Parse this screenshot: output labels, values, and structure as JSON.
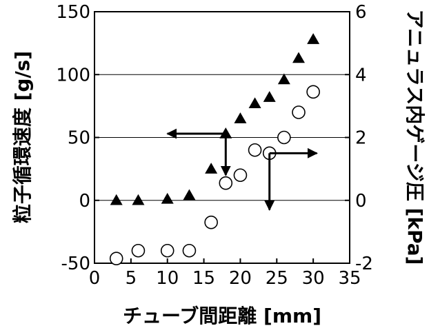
{
  "chart_data": {
    "type": "scatter",
    "xlabel": "チューブ間距離 [mm]",
    "ylabel": "粒子循環速度 [g/s]",
    "y2label": "アニュラス内ゲージ圧 [kPa]",
    "xlim": [
      0,
      35
    ],
    "ylim": [
      -50,
      150
    ],
    "y2lim": [
      -2,
      6
    ],
    "x_ticks": [
      "0",
      "5",
      "10",
      "15",
      "20",
      "25",
      "30",
      "35"
    ],
    "y_ticks": [
      "-50",
      "0",
      "50",
      "100",
      "150"
    ],
    "y2_ticks": [
      "-2",
      "0",
      "2",
      "4",
      "6"
    ],
    "grid": "horizontal",
    "series": [
      {
        "marker": "filled-triangle",
        "axis": "left",
        "color": "#000000",
        "x": [
          3,
          6,
          10,
          13,
          16,
          18,
          20,
          22,
          24,
          26,
          28,
          30
        ],
        "y": [
          0,
          0,
          1,
          4,
          25,
          53,
          65,
          77,
          82,
          96,
          113,
          128
        ]
      },
      {
        "marker": "open-circle",
        "axis": "right",
        "color": "#000000",
        "x": [
          3,
          6,
          10,
          13,
          16,
          18,
          20,
          22,
          24,
          26,
          28,
          30
        ],
        "y": [
          -1.85,
          -1.6,
          -1.6,
          -1.6,
          -0.7,
          0.55,
          0.8,
          1.6,
          1.5,
          2.0,
          2.8,
          3.45
        ]
      }
    ],
    "annotations": [
      {
        "type": "arrow",
        "from": [
          18,
          53
        ],
        "to": [
          10,
          53
        ],
        "axis": "left"
      },
      {
        "type": "arrow",
        "from": [
          18,
          53
        ],
        "to": [
          18,
          20
        ],
        "axis": "left"
      },
      {
        "type": "arrow",
        "from": [
          24,
          1.5
        ],
        "to": [
          30.5,
          1.5
        ],
        "axis": "right"
      },
      {
        "type": "arrow",
        "from": [
          24,
          1.5
        ],
        "to": [
          24,
          -0.3
        ],
        "axis": "right"
      }
    ]
  }
}
